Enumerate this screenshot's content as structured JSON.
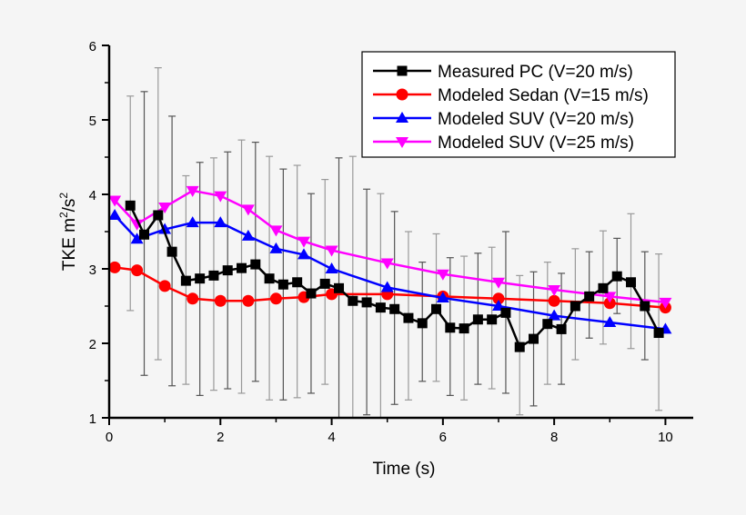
{
  "chart_data": {
    "type": "line",
    "xlabel": "Time (s)",
    "ylabel": "TKE m²/s²",
    "ylabel_parts": {
      "main": "TKE m",
      "sup1": "2",
      "mid": "/s",
      "sup2": "2"
    },
    "xlim": [
      0,
      10.5
    ],
    "ylim": [
      1,
      6
    ],
    "xticks": [
      0,
      2,
      4,
      6,
      8,
      10
    ],
    "yticks": [
      1,
      2,
      3,
      4,
      5,
      6
    ],
    "grid": false,
    "legend_position": "top-right",
    "series": [
      {
        "name": "Measured PC (V=20 m/s)",
        "color": "#000000",
        "marker": "square",
        "x": [
          0.38,
          0.63,
          0.88,
          1.13,
          1.38,
          1.63,
          1.88,
          2.13,
          2.38,
          2.63,
          2.88,
          3.13,
          3.38,
          3.63,
          3.88,
          4.13,
          4.38,
          4.63,
          4.88,
          5.13,
          5.38,
          5.63,
          5.88,
          6.13,
          6.38,
          6.63,
          6.88,
          7.13,
          7.38,
          7.63,
          7.88,
          8.13,
          8.38,
          8.63,
          8.88,
          9.13,
          9.38,
          9.63,
          9.88
        ],
        "y": [
          3.85,
          3.46,
          3.72,
          3.23,
          2.84,
          2.87,
          2.91,
          2.98,
          3.01,
          3.06,
          2.87,
          2.79,
          2.82,
          2.67,
          2.8,
          2.74,
          2.57,
          2.55,
          2.48,
          2.46,
          2.34,
          2.27,
          2.46,
          2.21,
          2.2,
          2.32,
          2.32,
          2.41,
          1.95,
          2.06,
          2.26,
          2.19,
          2.5,
          2.63,
          2.74,
          2.9,
          2.82,
          2.5,
          2.14
        ],
        "err_upper": [
          5.32,
          5.38,
          5.7,
          5.05,
          4.25,
          4.43,
          4.49,
          4.57,
          4.73,
          4.7,
          4.51,
          4.34,
          4.39,
          4.01,
          4.2,
          4.49,
          4.51,
          4.07,
          4.01,
          3.77,
          3.5,
          3.09,
          3.47,
          3.15,
          3.17,
          3.21,
          3.29,
          3.5,
          2.91,
          2.96,
          3.09,
          2.94,
          3.27,
          3.23,
          3.51,
          3.41,
          3.74,
          3.23,
          3.2
        ],
        "err_lower": [
          2.44,
          1.57,
          1.78,
          1.43,
          1.45,
          1.3,
          1.37,
          1.39,
          1.33,
          1.49,
          1.24,
          1.24,
          1.27,
          1.33,
          1.45,
          1.0,
          1.0,
          1.04,
          1.0,
          1.18,
          1.24,
          1.49,
          1.49,
          1.3,
          1.24,
          1.45,
          1.39,
          1.33,
          1.04,
          1.16,
          1.45,
          1.45,
          1.78,
          2.07,
          1.99,
          2.4,
          1.93,
          1.78,
          1.1
        ]
      },
      {
        "name": "Modeled Sedan (V=15 m/s)",
        "color": "#ff0000",
        "marker": "circle",
        "x": [
          0.1,
          0.5,
          1.0,
          1.5,
          2.0,
          2.5,
          3.0,
          3.5,
          4.0,
          5.0,
          6.0,
          7.0,
          8.0,
          9.0,
          10.0
        ],
        "y": [
          3.02,
          2.98,
          2.77,
          2.6,
          2.57,
          2.57,
          2.6,
          2.62,
          2.66,
          2.66,
          2.63,
          2.6,
          2.57,
          2.54,
          2.48
        ]
      },
      {
        "name": "Modeled SUV (V=20 m/s)",
        "color": "#0000ff",
        "marker": "triangle-up",
        "x": [
          0.1,
          0.5,
          1.0,
          1.5,
          2.0,
          2.5,
          3.0,
          3.5,
          4.0,
          5.0,
          6.0,
          7.0,
          8.0,
          9.0,
          10.0
        ],
        "y": [
          3.72,
          3.4,
          3.53,
          3.62,
          3.62,
          3.44,
          3.27,
          3.19,
          3.0,
          2.75,
          2.61,
          2.5,
          2.37,
          2.28,
          2.19
        ]
      },
      {
        "name": "Modeled SUV (V=25 m/s)",
        "color": "#ff00ff",
        "marker": "triangle-down",
        "x": [
          0.1,
          0.5,
          1.0,
          1.5,
          2.0,
          2.5,
          3.0,
          3.5,
          4.0,
          5.0,
          6.0,
          7.0,
          8.0,
          9.0,
          10.0
        ],
        "y": [
          3.92,
          3.6,
          3.83,
          4.05,
          3.98,
          3.8,
          3.52,
          3.37,
          3.25,
          3.08,
          2.93,
          2.82,
          2.72,
          2.63,
          2.55
        ]
      }
    ]
  }
}
